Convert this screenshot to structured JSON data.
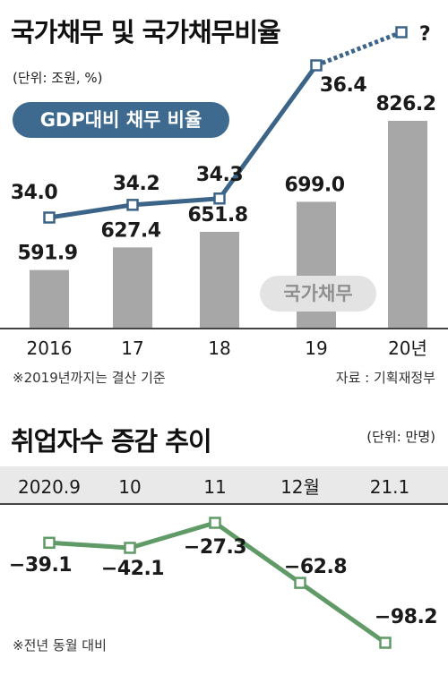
{
  "debt_section": {
    "title": "국가채무 및 국가채무비율",
    "unit": "(단위: 조원, %)",
    "line_legend": "GDP대비 채무 비율",
    "bar_tag": "국가채무",
    "question_mark": "?",
    "footnote": "※2019년까지는 결산 기준",
    "source": "자료 : 기획재정부"
  },
  "jobs_section": {
    "title": "취업자수 증감 추이",
    "unit": "(단위: 만명)",
    "footnote": "※전년 동월 대비"
  },
  "colors": {
    "bar": "#a7a7a7",
    "debt_line": "#3b6488",
    "marker_fill": "#ffffff",
    "jobs_line": "#5f9a67",
    "rule": "#444444",
    "jobs_band": "#e9e9e9",
    "pill_bg": "#3d6a8e",
    "tag_bg": "#e3e3e3"
  },
  "chart_data": [
    {
      "type": "bar",
      "series_name": "국가채무",
      "categories": [
        "2016",
        "17",
        "18",
        "19",
        "20년"
      ],
      "values": [
        591.9,
        627.4,
        651.8,
        699.0,
        826.2
      ],
      "value_labels": [
        "591.9",
        "627.4",
        "651.8",
        "699.0",
        "826.2"
      ],
      "ylim": [
        500,
        850
      ],
      "unit": "조원"
    },
    {
      "type": "line",
      "series_name": "GDP대비 채무 비율",
      "categories": [
        "2016",
        "17",
        "18",
        "19",
        "20년"
      ],
      "values": [
        34.0,
        34.2,
        34.3,
        36.4,
        null
      ],
      "value_labels": [
        "34.0",
        "34.2",
        "34.3",
        "36.4",
        "?"
      ],
      "projected_last_point": true,
      "unit": "%"
    },
    {
      "type": "line",
      "series_name": "취업자수 증감",
      "categories": [
        "2020.9",
        "10",
        "11",
        "12월",
        "21.1"
      ],
      "values": [
        -39.1,
        -42.1,
        -27.3,
        -62.8,
        -98.2
      ],
      "value_labels": [
        "−39.1",
        "−42.1",
        "−27.3",
        "−62.8",
        "−98.2"
      ],
      "ylim": [
        -100,
        -20
      ],
      "unit": "만명"
    }
  ]
}
